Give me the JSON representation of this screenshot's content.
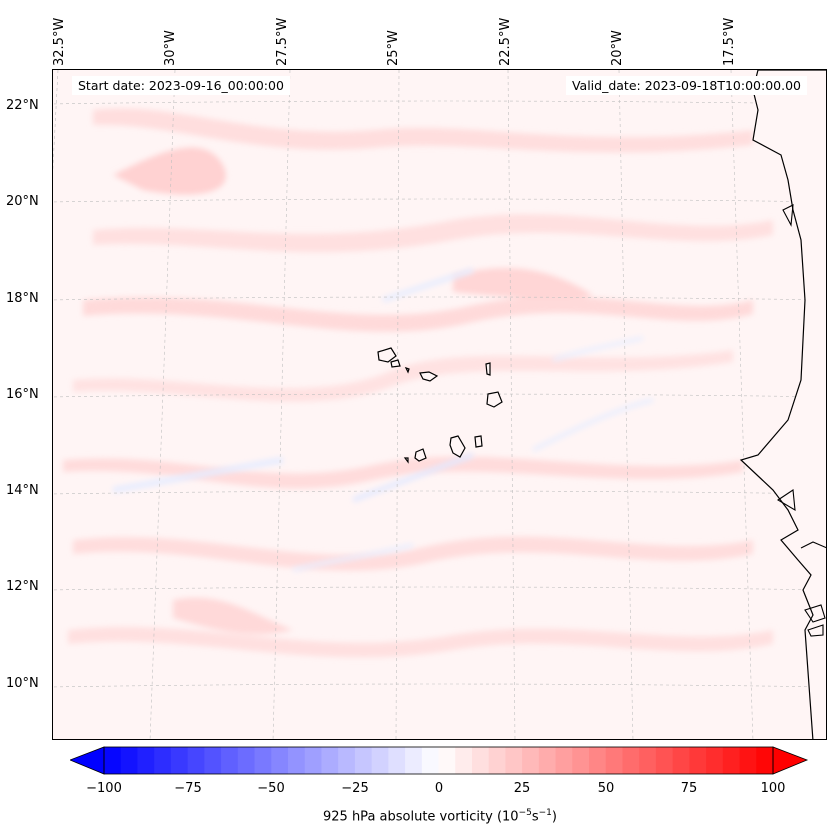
{
  "map": {
    "start_date": "Start date: 2023-09-16_00:00:00",
    "valid_date": "Valid_date: 2023-09-18T10:00:00.00",
    "lat_labels": [
      "22°N",
      "20°N",
      "18°N",
      "16°N",
      "14°N",
      "12°N",
      "10°N"
    ],
    "lon_labels": [
      "32.5°W",
      "30°W",
      "27.5°W",
      "25°W",
      "22.5°W",
      "20°W",
      "17.5°W"
    ],
    "field": "925 hPa absolute vorticity",
    "colormap": "bwr",
    "colors": {
      "min": "#0000ff",
      "mid": "#ffffff",
      "max": "#ff0000",
      "coast": "#000000"
    }
  },
  "colorbar": {
    "label": "925 hPa absolute vorticity (10",
    "unit_exp1": "−5",
    "unit_mid": "s",
    "unit_exp2": "−1",
    "unit_close": ")",
    "ticks": [
      "−100",
      "−75",
      "−50",
      "−25",
      "0",
      "25",
      "50",
      "75",
      "100"
    ],
    "range": [
      -100,
      100
    ],
    "levels": 40
  }
}
